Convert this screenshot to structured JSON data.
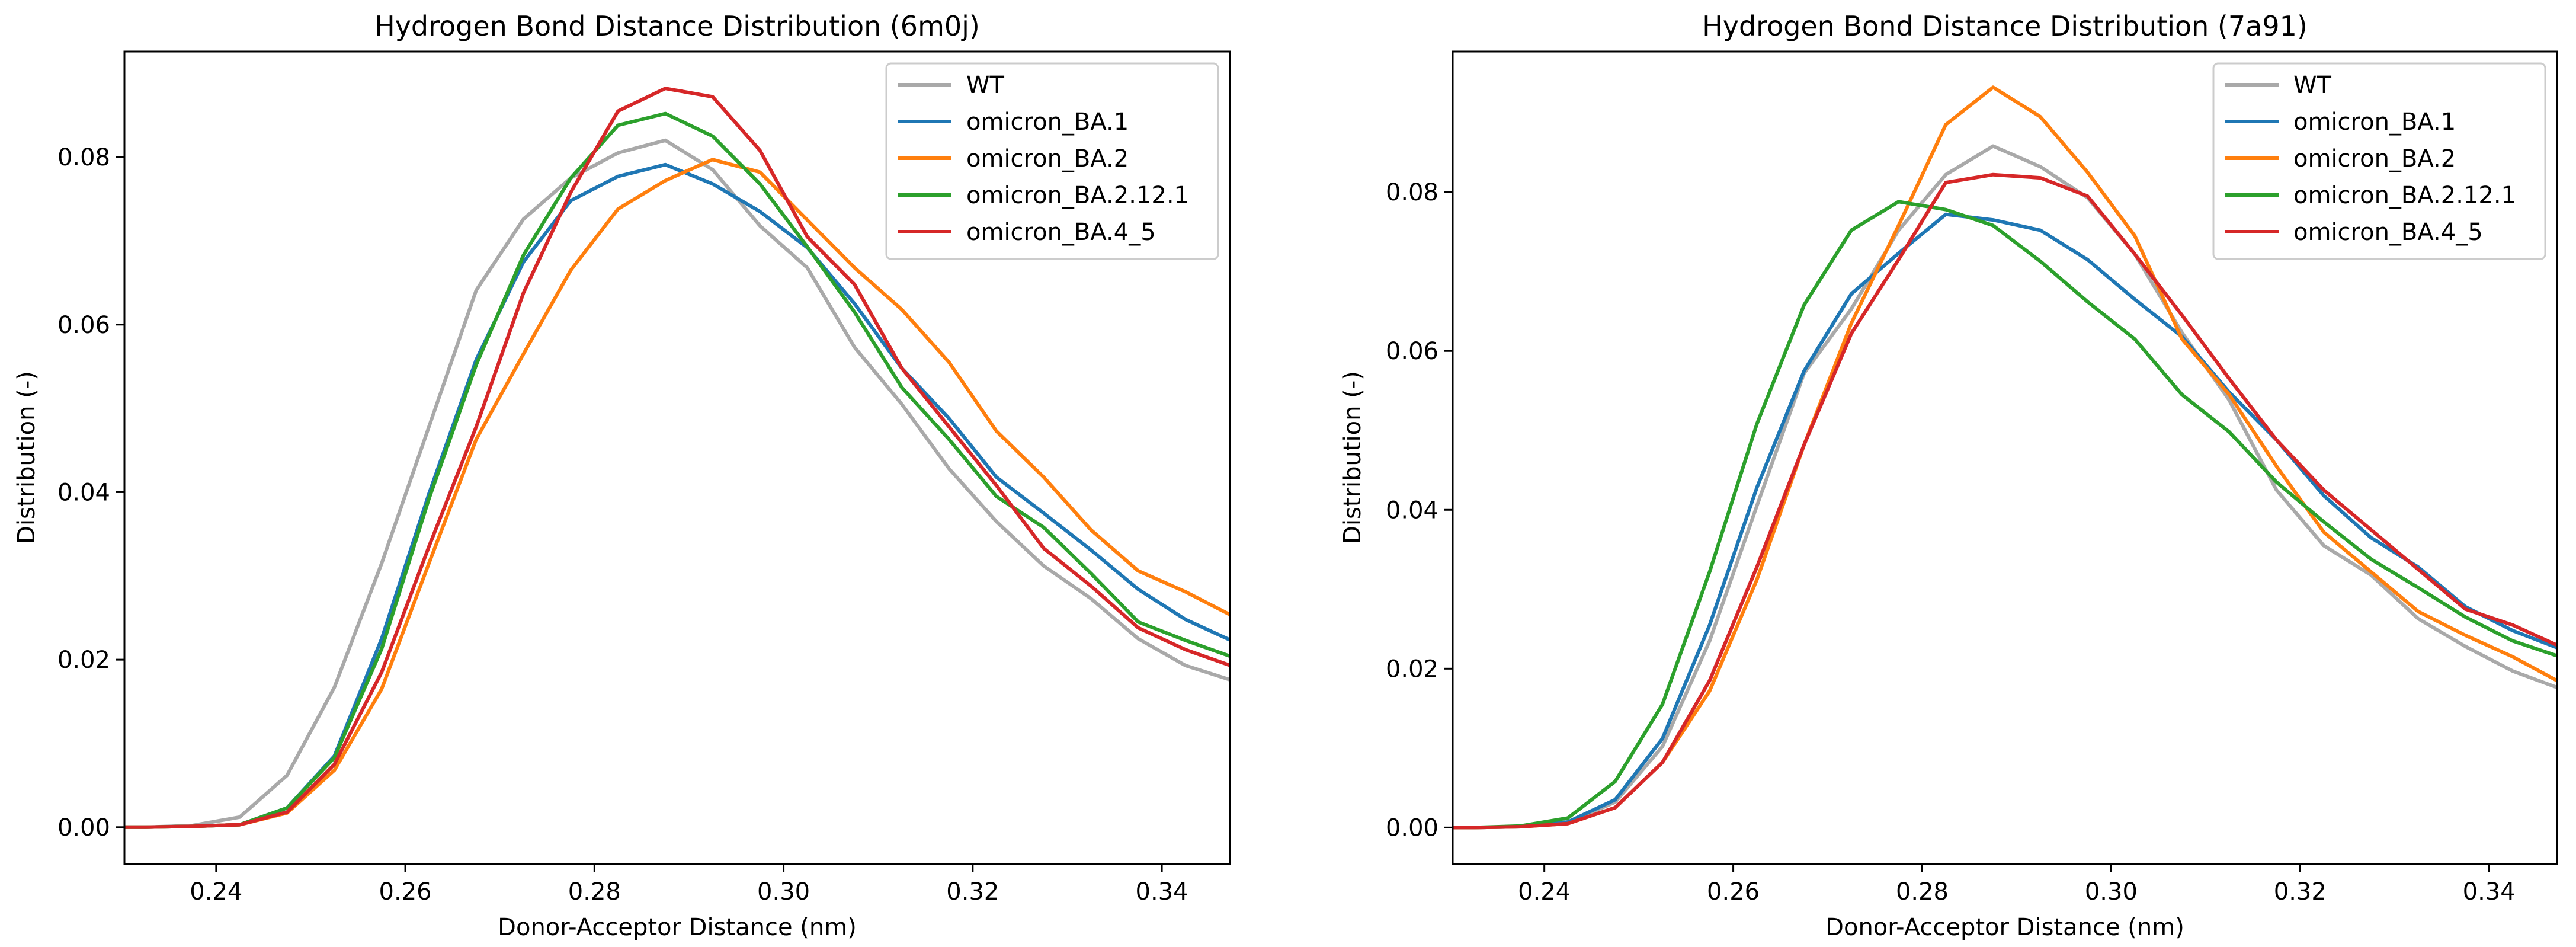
{
  "figure": {
    "colors": {
      "WT": "#a9a9a9",
      "omicron_BA.1": "#1f77b4",
      "omicron_BA.2": "#ff7f0e",
      "omicron_BA.2.12.1": "#2ca02c",
      "omicron_BA.4_5": "#d62728"
    }
  },
  "chart_data": [
    {
      "type": "line",
      "title": "Hydrogen Bond Distance Distribution (6m0j)",
      "xlabel": "Donor-Acceptor Distance (nm)",
      "ylabel": "Distribution (-)",
      "xlim": [
        0.2303,
        0.3472
      ],
      "ylim": [
        -0.0044,
        0.0926
      ],
      "xticks": [
        0.24,
        0.26,
        0.28,
        0.3,
        0.32,
        0.34
      ],
      "xtick_labels": [
        "0.24",
        "0.26",
        "0.28",
        "0.30",
        "0.32",
        "0.34"
      ],
      "yticks": [
        0.0,
        0.02,
        0.04,
        0.06,
        0.08
      ],
      "ytick_labels": [
        "0.00",
        "0.02",
        "0.04",
        "0.06",
        "0.08"
      ],
      "legend_position": "top-right",
      "grid": false,
      "x": [
        0.2275,
        0.2325,
        0.2375,
        0.2425,
        0.2475,
        0.2525,
        0.2575,
        0.2625,
        0.2675,
        0.2725,
        0.2775,
        0.2825,
        0.2875,
        0.2925,
        0.2975,
        0.3025,
        0.3075,
        0.3125,
        0.3175,
        0.3225,
        0.3275,
        0.3325,
        0.3375,
        0.3425,
        0.3475
      ],
      "series": [
        {
          "name": "WT",
          "values": [
            0.0,
            0.0,
            0.0002,
            0.0012,
            0.0062,
            0.0167,
            0.0315,
            0.0478,
            0.0641,
            0.0726,
            0.0775,
            0.0805,
            0.082,
            0.0785,
            0.0718,
            0.0668,
            0.0573,
            0.0505,
            0.0428,
            0.0365,
            0.0312,
            0.0273,
            0.0225,
            0.0193,
            0.0175
          ]
        },
        {
          "name": "omicron_BA.1",
          "values": [
            0.0,
            0.0,
            0.0001,
            0.0003,
            0.0023,
            0.0085,
            0.0225,
            0.0398,
            0.0558,
            0.0675,
            0.0748,
            0.0777,
            0.0791,
            0.0768,
            0.0735,
            0.0692,
            0.0625,
            0.0548,
            0.0488,
            0.0418,
            0.0375,
            0.0331,
            0.0284,
            0.0248,
            0.0222
          ]
        },
        {
          "name": "omicron_BA.2",
          "values": [
            0.0,
            0.0,
            0.0001,
            0.0003,
            0.0017,
            0.0068,
            0.0165,
            0.0315,
            0.0463,
            0.0565,
            0.0665,
            0.0738,
            0.0772,
            0.0797,
            0.0782,
            0.0725,
            0.0668,
            0.0618,
            0.0555,
            0.0473,
            0.0418,
            0.0355,
            0.0306,
            0.0281,
            0.0252
          ]
        },
        {
          "name": "omicron_BA.2.12.1",
          "values": [
            0.0,
            0.0,
            0.0001,
            0.0003,
            0.0023,
            0.0083,
            0.0213,
            0.0392,
            0.0552,
            0.0683,
            0.0775,
            0.0838,
            0.0852,
            0.0825,
            0.0768,
            0.0693,
            0.0615,
            0.0525,
            0.0463,
            0.0395,
            0.0358,
            0.0303,
            0.0245,
            0.0223,
            0.0203
          ]
        },
        {
          "name": "omicron_BA.4_5",
          "values": [
            0.0,
            0.0,
            0.0001,
            0.0003,
            0.0018,
            0.0075,
            0.0185,
            0.0335,
            0.0478,
            0.0638,
            0.0758,
            0.0855,
            0.0882,
            0.0872,
            0.0808,
            0.0705,
            0.0648,
            0.0548,
            0.0478,
            0.0408,
            0.0333,
            0.0288,
            0.0238,
            0.0212,
            0.0192
          ]
        }
      ]
    },
    {
      "type": "line",
      "title": "Hydrogen Bond Distance Distribution (7a91)",
      "xlabel": "Donor-Acceptor Distance (nm)",
      "ylabel": "Distribution (-)",
      "xlim": [
        0.2303,
        0.3472
      ],
      "ylim": [
        -0.0046,
        0.0977
      ],
      "xticks": [
        0.24,
        0.26,
        0.28,
        0.3,
        0.32,
        0.34
      ],
      "xtick_labels": [
        "0.24",
        "0.26",
        "0.28",
        "0.30",
        "0.32",
        "0.34"
      ],
      "yticks": [
        0.0,
        0.02,
        0.04,
        0.06,
        0.08
      ],
      "ytick_labels": [
        "0.00",
        "0.02",
        "0.04",
        "0.06",
        "0.08"
      ],
      "legend_position": "top-right",
      "grid": false,
      "x": [
        0.2275,
        0.2325,
        0.2375,
        0.2425,
        0.2475,
        0.2525,
        0.2575,
        0.2625,
        0.2675,
        0.2725,
        0.2775,
        0.2825,
        0.2875,
        0.2925,
        0.2975,
        0.3025,
        0.3075,
        0.3125,
        0.3175,
        0.3225,
        0.3275,
        0.3325,
        0.3375,
        0.3425,
        0.3475
      ],
      "series": [
        {
          "name": "WT",
          "values": [
            0.0,
            0.0,
            0.0001,
            0.0006,
            0.0032,
            0.0102,
            0.0235,
            0.0405,
            0.0572,
            0.0653,
            0.0752,
            0.0822,
            0.0858,
            0.0832,
            0.0793,
            0.0722,
            0.0623,
            0.0538,
            0.0425,
            0.0355,
            0.0318,
            0.0263,
            0.0228,
            0.0197,
            0.0175
          ]
        },
        {
          "name": "omicron_BA.1",
          "values": [
            0.0,
            0.0,
            0.0001,
            0.0007,
            0.0035,
            0.0112,
            0.0255,
            0.0428,
            0.0575,
            0.0672,
            0.0723,
            0.0772,
            0.0765,
            0.0752,
            0.0715,
            0.0665,
            0.0618,
            0.0548,
            0.0488,
            0.0418,
            0.0365,
            0.0328,
            0.0278,
            0.0248,
            0.0225
          ]
        },
        {
          "name": "omicron_BA.2",
          "values": [
            0.0,
            0.0,
            0.0001,
            0.0005,
            0.0025,
            0.0082,
            0.0172,
            0.0312,
            0.0482,
            0.0635,
            0.0758,
            0.0885,
            0.0932,
            0.0895,
            0.0825,
            0.0745,
            0.0615,
            0.0545,
            0.0455,
            0.0372,
            0.0322,
            0.0272,
            0.0242,
            0.0215,
            0.0183
          ]
        },
        {
          "name": "omicron_BA.2.12.1",
          "values": [
            0.0,
            0.0,
            0.0002,
            0.0012,
            0.0058,
            0.0155,
            0.0322,
            0.0508,
            0.0658,
            0.0752,
            0.0788,
            0.0778,
            0.0758,
            0.0713,
            0.0662,
            0.0615,
            0.0545,
            0.0498,
            0.0435,
            0.0385,
            0.0338,
            0.0302,
            0.0265,
            0.0235,
            0.0215
          ]
        },
        {
          "name": "omicron_BA.4_5",
          "values": [
            0.0,
            0.0,
            0.0001,
            0.0005,
            0.0025,
            0.0082,
            0.0185,
            0.0328,
            0.0482,
            0.0622,
            0.0715,
            0.0812,
            0.0822,
            0.0818,
            0.0795,
            0.0722,
            0.0645,
            0.0565,
            0.0488,
            0.0425,
            0.0375,
            0.0325,
            0.0275,
            0.0255,
            0.0228
          ]
        }
      ]
    }
  ]
}
